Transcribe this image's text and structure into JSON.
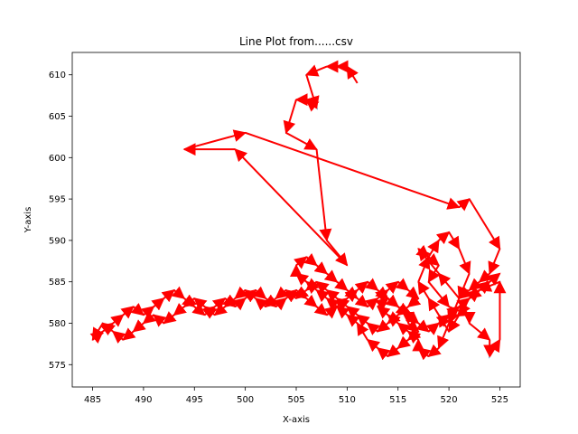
{
  "chart_data": {
    "type": "line",
    "title": "Line Plot from......csv",
    "xlabel": "X-axis",
    "ylabel": "Y-axis",
    "xlim": [
      483,
      527
    ],
    "ylim": [
      572.3,
      612.7
    ],
    "xticks": [
      485,
      490,
      495,
      500,
      505,
      510,
      515,
      520,
      525
    ],
    "yticks": [
      575,
      580,
      585,
      590,
      595,
      600,
      605,
      610
    ],
    "grid": false,
    "line_color": "#1f77b4",
    "arrow_color": "#ff0000",
    "series": [
      {
        "x": [
          511,
          510,
          509,
          508,
          506,
          507,
          506,
          505,
          504,
          507,
          508,
          510,
          499,
          494,
          500,
          521,
          522,
          525,
          524,
          523,
          522,
          521,
          519,
          517,
          518,
          519,
          518,
          520,
          522,
          522,
          524,
          524,
          525,
          525,
          523,
          522,
          521,
          520,
          519,
          518,
          517,
          518,
          519,
          520,
          521,
          522,
          521,
          520,
          519,
          518,
          517,
          517,
          516,
          515,
          514,
          513,
          514,
          515,
          516,
          516,
          517,
          516,
          515,
          514,
          513,
          512,
          511,
          510,
          509,
          508,
          507,
          506,
          505,
          505,
          506,
          507,
          508,
          509,
          510,
          511,
          512,
          513,
          514,
          515,
          516,
          517,
          516,
          515,
          514,
          513,
          512,
          511,
          510,
          509,
          508,
          507,
          506,
          505,
          504,
          503,
          502,
          501,
          500,
          499,
          498,
          497,
          496,
          495,
          494,
          493,
          492,
          491,
          490,
          489,
          488,
          487,
          486,
          485,
          486,
          487,
          488,
          489,
          490,
          491,
          492,
          493,
          494,
          495,
          496,
          497,
          498,
          499,
          500,
          501,
          502,
          503,
          504,
          505,
          506,
          507,
          508,
          509,
          510,
          511,
          512,
          513,
          514,
          515,
          516,
          517,
          518,
          519,
          520,
          521,
          522,
          523,
          524,
          525
        ],
        "y": [
          609,
          611,
          611,
          611,
          610,
          606,
          607,
          607,
          603,
          601,
          590,
          587,
          601,
          601,
          603,
          594,
          595,
          589,
          586,
          585,
          584,
          583,
          586,
          589,
          588,
          587,
          585,
          582,
          581,
          580,
          578,
          576,
          578,
          585,
          584,
          583,
          581,
          579,
          581,
          583,
          585,
          588,
          590,
          591,
          589,
          586,
          583,
          580,
          577,
          576,
          577,
          578,
          579,
          580,
          581,
          582,
          583,
          582,
          581,
          580,
          579,
          578,
          577,
          576,
          577,
          578,
          580,
          581,
          582,
          583,
          584,
          585,
          586,
          587,
          588,
          587,
          586,
          585,
          584,
          583,
          582,
          583,
          584,
          585,
          584,
          583,
          582,
          581,
          580,
          579,
          580,
          581,
          582,
          583,
          584,
          585,
          584,
          583,
          584,
          583,
          582,
          583,
          584,
          583,
          582,
          581,
          582,
          583,
          582,
          581,
          580,
          581,
          580,
          579,
          578,
          579,
          580,
          578,
          579,
          580,
          581,
          582,
          581,
          582,
          583,
          584,
          583,
          582,
          581,
          582,
          583,
          582,
          583,
          584,
          583,
          582,
          583,
          584,
          583,
          582,
          581,
          582,
          583,
          584,
          585,
          584,
          583,
          582,
          581,
          580,
          579,
          580,
          581,
          582,
          583,
          584,
          585,
          586
        ]
      }
    ]
  }
}
